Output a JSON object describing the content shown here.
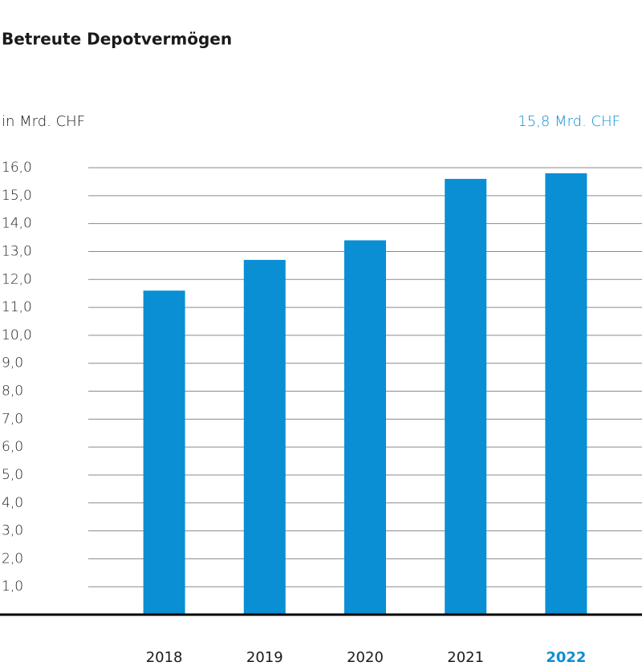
{
  "chart_data": {
    "type": "bar",
    "title": "Betreute Depotvermögen",
    "unit_label": "in Mrd. CHF",
    "annotation": "15,8 Mrd. CHF",
    "categories": [
      "2018",
      "2019",
      "2020",
      "2021",
      "2022"
    ],
    "values": [
      11.6,
      12.7,
      13.4,
      15.6,
      15.8
    ],
    "color": "#0a8fd4",
    "ylim": [
      0,
      16
    ],
    "yticks": [
      {
        "value": 1,
        "label": "1,0"
      },
      {
        "value": 2,
        "label": "2,0"
      },
      {
        "value": 3,
        "label": "3,0"
      },
      {
        "value": 4,
        "label": "4,0"
      },
      {
        "value": 5,
        "label": "5,0"
      },
      {
        "value": 6,
        "label": "6,0"
      },
      {
        "value": 7,
        "label": "7,0"
      },
      {
        "value": 8,
        "label": "8,0"
      },
      {
        "value": 9,
        "label": "9,0"
      },
      {
        "value": 10,
        "label": "10,0"
      },
      {
        "value": 11,
        "label": "11,0"
      },
      {
        "value": 12,
        "label": "12,0"
      },
      {
        "value": 13,
        "label": "13,0"
      },
      {
        "value": 14,
        "label": "14,0"
      },
      {
        "value": 15,
        "label": "15,0"
      },
      {
        "value": 16,
        "label": "16,0"
      }
    ],
    "grid": true
  }
}
